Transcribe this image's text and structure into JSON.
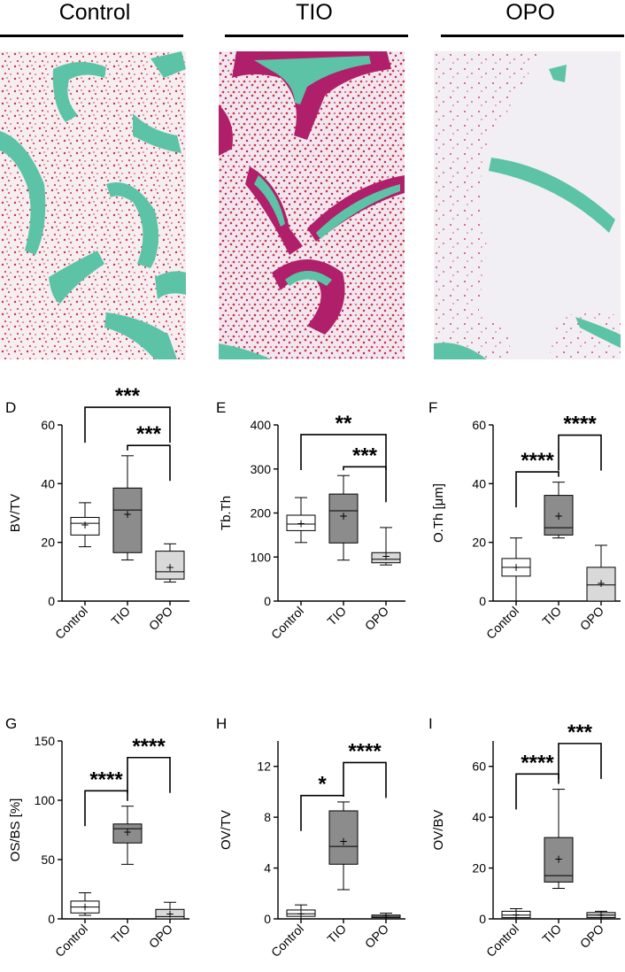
{
  "columns": [
    {
      "label": "Control",
      "stain": "control"
    },
    {
      "label": "TIO",
      "stain": "tio"
    },
    {
      "label": "OPO",
      "stain": "opo"
    }
  ],
  "colors": {
    "bone": "#5cc3a6",
    "osteoid": "#b0206a",
    "marrow": "#c8304a",
    "box_control": "#ffffff",
    "box_tio": "#8c8c8c",
    "box_opo": "#d9d9d9"
  },
  "chart_data": [
    {
      "type": "box",
      "panel": "D",
      "ylabel": "BV/TV",
      "ylim": [
        0,
        60
      ],
      "yticks": [
        0,
        20,
        40,
        60
      ],
      "categories": [
        "Control",
        "TIO",
        "OPO"
      ],
      "boxes": [
        {
          "min": 18.5,
          "q1": 22.5,
          "median": 26.5,
          "q3": 28.5,
          "max": 33.5,
          "mean": 26
        },
        {
          "min": 14,
          "q1": 16.5,
          "median": 31,
          "q3": 38.5,
          "max": 49.5,
          "mean": 29.5
        },
        {
          "min": 6.5,
          "q1": 7.5,
          "median": 10,
          "q3": 17,
          "max": 19.5,
          "mean": 11.5
        }
      ],
      "significance": [
        {
          "from": "Control",
          "to": "OPO",
          "label": "***",
          "level": 66
        },
        {
          "from": "TIO",
          "to": "OPO",
          "label": "***",
          "level": 53
        }
      ]
    },
    {
      "type": "box",
      "panel": "E",
      "ylabel": "Tb.Th",
      "ylim": [
        0,
        400
      ],
      "yticks": [
        0,
        100,
        200,
        300,
        400
      ],
      "categories": [
        "Control",
        "TIO",
        "OPO"
      ],
      "boxes": [
        {
          "min": 133,
          "q1": 160,
          "median": 175,
          "q3": 195,
          "max": 235,
          "mean": 176
        },
        {
          "min": 93,
          "q1": 132,
          "median": 205,
          "q3": 243,
          "max": 285,
          "mean": 193
        },
        {
          "min": 82,
          "q1": 87,
          "median": 95,
          "q3": 110,
          "max": 167,
          "mean": 102
        }
      ],
      "significance": [
        {
          "from": "Control",
          "to": "OPO",
          "label": "**",
          "level": 378
        },
        {
          "from": "TIO",
          "to": "OPO",
          "label": "***",
          "level": 305
        }
      ]
    },
    {
      "type": "box",
      "panel": "F",
      "ylabel": "O.Th [μm]",
      "ylim": [
        0,
        60
      ],
      "yticks": [
        0,
        20,
        40,
        60
      ],
      "categories": [
        "Control",
        "TIO",
        "OPO"
      ],
      "boxes": [
        {
          "min": 0,
          "q1": 8.5,
          "median": 11.5,
          "q3": 14.5,
          "max": 21.5,
          "mean": 11.5
        },
        {
          "min": 21.5,
          "q1": 22.5,
          "median": 25,
          "q3": 36,
          "max": 40.5,
          "mean": 29
        },
        {
          "min": 0,
          "q1": 0,
          "median": 5.5,
          "q3": 11.5,
          "max": 19,
          "mean": 6
        }
      ],
      "significance": [
        {
          "from": "Control",
          "to": "TIO",
          "label": "****",
          "level": 44
        },
        {
          "from": "TIO",
          "to": "OPO",
          "label": "****",
          "level": 56.5
        }
      ]
    },
    {
      "type": "box",
      "panel": "G",
      "ylabel": "OS/BS [%]",
      "ylim": [
        0,
        150
      ],
      "yticks": [
        0,
        50,
        100,
        150
      ],
      "categories": [
        "Control",
        "TIO",
        "OPO"
      ],
      "boxes": [
        {
          "min": 3,
          "q1": 5,
          "median": 10,
          "q3": 15,
          "max": 22,
          "mean": 10
        },
        {
          "min": 46,
          "q1": 64,
          "median": 76,
          "q3": 80,
          "max": 95,
          "mean": 73
        },
        {
          "min": 0,
          "q1": 0,
          "median": 2,
          "q3": 8,
          "max": 14,
          "mean": 4
        }
      ],
      "significance": [
        {
          "from": "Control",
          "to": "TIO",
          "label": "****",
          "level": 108
        },
        {
          "from": "TIO",
          "to": "OPO",
          "label": "****",
          "level": 136
        }
      ]
    },
    {
      "type": "box",
      "panel": "H",
      "ylabel": "OV/TV",
      "ylim": [
        0,
        14
      ],
      "yticks": [
        0,
        4,
        8,
        12
      ],
      "categories": [
        "Control",
        "TIO",
        "OPO"
      ],
      "boxes": [
        {
          "min": 0,
          "q1": 0.2,
          "median": 0.4,
          "q3": 0.7,
          "max": 1.1,
          "mean": 0.4
        },
        {
          "min": 2.3,
          "q1": 4.3,
          "median": 5.7,
          "q3": 8.5,
          "max": 9.2,
          "mean": 6.1
        },
        {
          "min": 0,
          "q1": 0.1,
          "median": 0.2,
          "q3": 0.3,
          "max": 0.45,
          "mean": 0.2
        }
      ],
      "significance": [
        {
          "from": "Control",
          "to": "TIO",
          "label": "*",
          "level": 9.7
        },
        {
          "from": "TIO",
          "to": "OPO",
          "label": "****",
          "level": 12.3
        }
      ]
    },
    {
      "type": "box",
      "panel": "I",
      "ylabel": "OV/BV",
      "ylim": [
        0,
        70
      ],
      "yticks": [
        0,
        20,
        40,
        60
      ],
      "categories": [
        "Control",
        "TIO",
        "OPO"
      ],
      "boxes": [
        {
          "min": 0,
          "q1": 0.5,
          "median": 1.5,
          "q3": 3,
          "max": 4,
          "mean": 1.5
        },
        {
          "min": 12,
          "q1": 14.5,
          "median": 17,
          "q3": 32,
          "max": 51,
          "mean": 23.5
        },
        {
          "min": 0,
          "q1": 0.5,
          "median": 1.5,
          "q3": 2.5,
          "max": 3,
          "mean": 1.5
        }
      ],
      "significance": [
        {
          "from": "Control",
          "to": "TIO",
          "label": "****",
          "level": 57
        },
        {
          "from": "TIO",
          "to": "OPO",
          "label": "***",
          "level": 69
        }
      ]
    }
  ]
}
